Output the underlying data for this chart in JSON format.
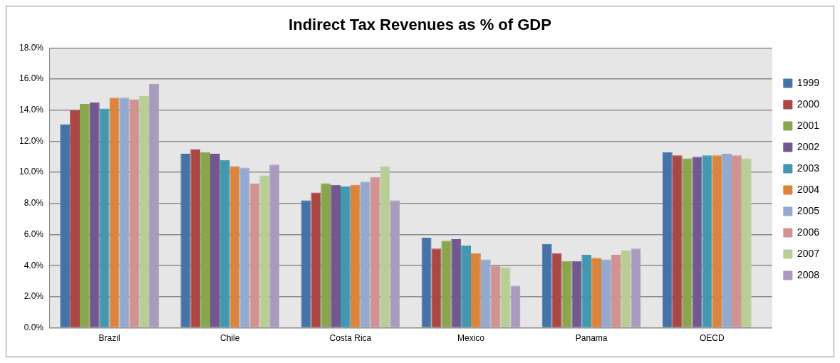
{
  "chart_data": {
    "type": "bar",
    "title": "Indirect Tax Revenues as % of GDP",
    "categories": [
      "Brazil",
      "Chile",
      "Costa Rica",
      "Mexico",
      "Panama",
      "OECD"
    ],
    "series": [
      {
        "name": "1999",
        "color": "#4572a7",
        "values": [
          13.1,
          11.2,
          8.2,
          5.8,
          5.4,
          11.3
        ]
      },
      {
        "name": "2000",
        "color": "#aa4643",
        "values": [
          14.0,
          11.5,
          8.7,
          5.1,
          4.8,
          11.1
        ]
      },
      {
        "name": "2001",
        "color": "#89a54e",
        "values": [
          14.4,
          11.3,
          9.3,
          5.6,
          4.3,
          10.9
        ]
      },
      {
        "name": "2002",
        "color": "#71588f",
        "values": [
          14.5,
          11.2,
          9.2,
          5.7,
          4.3,
          11.0
        ]
      },
      {
        "name": "2003",
        "color": "#4198af",
        "values": [
          14.1,
          10.8,
          9.1,
          5.3,
          4.7,
          11.1
        ]
      },
      {
        "name": "2004",
        "color": "#db843d",
        "values": [
          14.8,
          10.4,
          9.2,
          4.8,
          4.5,
          11.1
        ]
      },
      {
        "name": "2005",
        "color": "#93a9cf",
        "values": [
          14.8,
          10.3,
          9.4,
          4.4,
          4.4,
          11.2
        ]
      },
      {
        "name": "2006",
        "color": "#d19392",
        "values": [
          14.7,
          9.3,
          9.7,
          4.0,
          4.7,
          11.1
        ]
      },
      {
        "name": "2007",
        "color": "#b9cd96",
        "values": [
          14.9,
          9.8,
          10.4,
          3.9,
          5.0,
          10.9
        ]
      },
      {
        "name": "2008",
        "color": "#a99bbd",
        "values": [
          15.7,
          10.5,
          8.2,
          2.7,
          5.1,
          null
        ]
      }
    ],
    "ylim": [
      0,
      18
    ],
    "yticks": [
      {
        "value": 0,
        "label": "0.0%"
      },
      {
        "value": 2,
        "label": "2.0%"
      },
      {
        "value": 4,
        "label": "4.0%"
      },
      {
        "value": 6,
        "label": "6.0%"
      },
      {
        "value": 8,
        "label": "8.0%"
      },
      {
        "value": 10,
        "label": "10.0%"
      },
      {
        "value": 12,
        "label": "12.0%"
      },
      {
        "value": 14,
        "label": "14.0%"
      },
      {
        "value": 16,
        "label": "16.0%"
      },
      {
        "value": 18,
        "label": "18.0%"
      }
    ],
    "grid": "y",
    "legend": "right"
  }
}
